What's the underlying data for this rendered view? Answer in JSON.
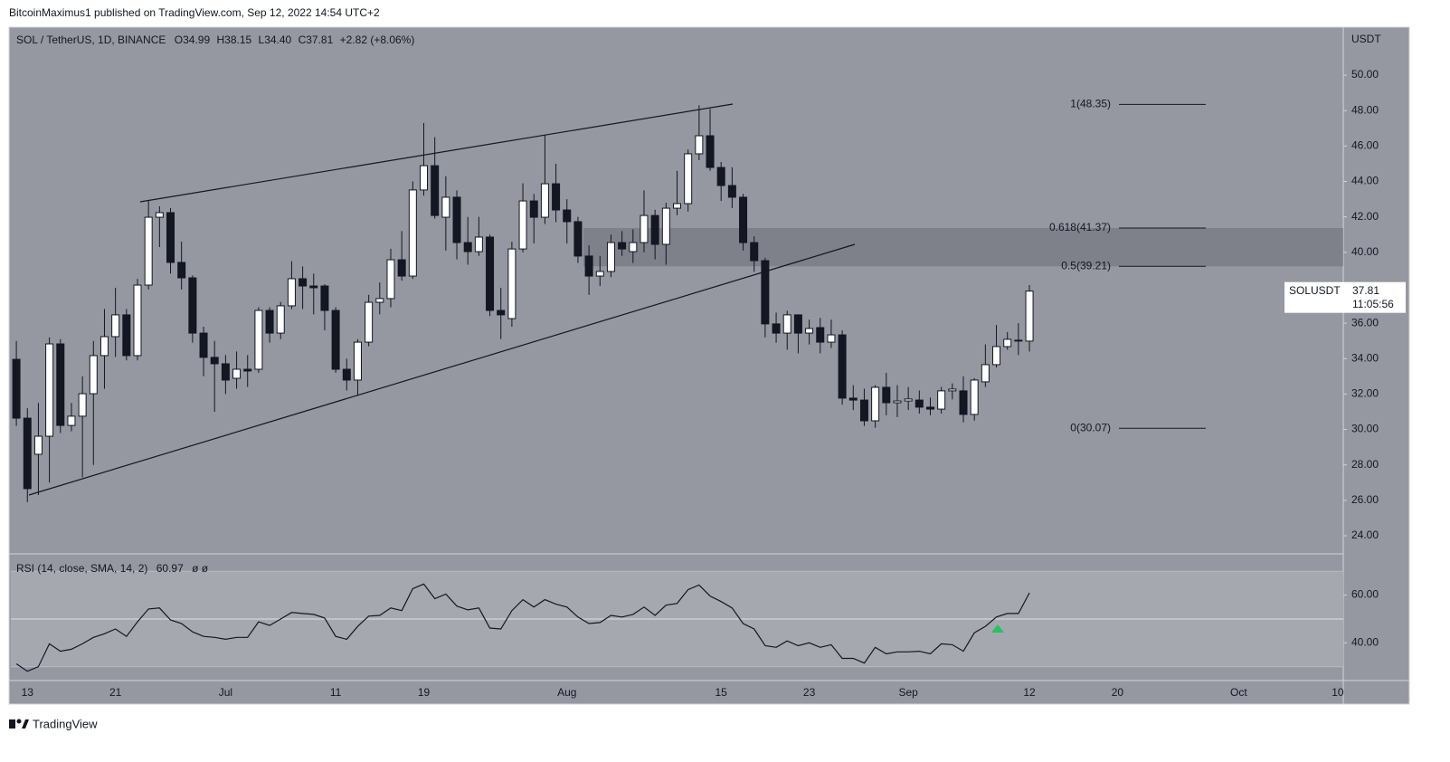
{
  "header": {
    "text": "BitcoinMaximus1 published on TradingView.com, Sep 12, 2022 14:54 UTC+2"
  },
  "footer": {
    "brand": "TradingView"
  },
  "chart_data": [
    {
      "type": "candlestick",
      "title": "SOL / TetherUS, 1D, BINANCE",
      "ohlc_letters": {
        "open": "O",
        "high": "H",
        "low": "L",
        "close": "C"
      },
      "ohlc_labels": {
        "open": "34.99",
        "high": "38.15",
        "low": "34.40",
        "close": "37.81"
      },
      "change": "+2.82 (+8.06%)",
      "axis_unit": "USDT",
      "price_label": {
        "symbol": "SOLUSDT",
        "countdown": "11:05:56"
      },
      "up_color": "#ffffff",
      "down_color": "#131722",
      "x": [
        "2022-06-12",
        "2022-06-13",
        "2022-06-14",
        "2022-06-15",
        "2022-06-16",
        "2022-06-17",
        "2022-06-18",
        "2022-06-19",
        "2022-06-20",
        "2022-06-21",
        "2022-06-22",
        "2022-06-23",
        "2022-06-24",
        "2022-06-25",
        "2022-06-26",
        "2022-06-27",
        "2022-06-28",
        "2022-06-29",
        "2022-06-30",
        "2022-07-01",
        "2022-07-02",
        "2022-07-03",
        "2022-07-04",
        "2022-07-05",
        "2022-07-06",
        "2022-07-07",
        "2022-07-08",
        "2022-07-09",
        "2022-07-10",
        "2022-07-11",
        "2022-07-12",
        "2022-07-13",
        "2022-07-14",
        "2022-07-15",
        "2022-07-16",
        "2022-07-17",
        "2022-07-18",
        "2022-07-19",
        "2022-07-20",
        "2022-07-21",
        "2022-07-22",
        "2022-07-23",
        "2022-07-24",
        "2022-07-25",
        "2022-07-26",
        "2022-07-27",
        "2022-07-28",
        "2022-07-29",
        "2022-07-30",
        "2022-07-31",
        "2022-08-01",
        "2022-08-02",
        "2022-08-03",
        "2022-08-04",
        "2022-08-05",
        "2022-08-06",
        "2022-08-07",
        "2022-08-08",
        "2022-08-09",
        "2022-08-10",
        "2022-08-11",
        "2022-08-12",
        "2022-08-13",
        "2022-08-14",
        "2022-08-15",
        "2022-08-16",
        "2022-08-17",
        "2022-08-18",
        "2022-08-19",
        "2022-08-20",
        "2022-08-21",
        "2022-08-22",
        "2022-08-23",
        "2022-08-24",
        "2022-08-25",
        "2022-08-26",
        "2022-08-27",
        "2022-08-28",
        "2022-08-29",
        "2022-08-30",
        "2022-08-31",
        "2022-09-01",
        "2022-09-02",
        "2022-09-03",
        "2022-09-04",
        "2022-09-05",
        "2022-09-06",
        "2022-09-07",
        "2022-09-08",
        "2022-09-09",
        "2022-09-10",
        "2022-09-11",
        "2022-09-12"
      ],
      "open": [
        33.96,
        30.64,
        28.6,
        29.62,
        34.83,
        30.23,
        30.75,
        32.02,
        34.17,
        35.24,
        36.47,
        34.17,
        38.15,
        41.98,
        42.24,
        39.43,
        38.56,
        35.44,
        34.07,
        33.71,
        32.89,
        33.4,
        33.4,
        36.72,
        35.44,
        36.98,
        38.51,
        38.1,
        38.1,
        36.72,
        33.4,
        32.79,
        34.93,
        37.18,
        37.39,
        39.58,
        38.66,
        43.52,
        44.89,
        41.98,
        43.11,
        40.55,
        40.04,
        40.86,
        36.72,
        36.26,
        40.19,
        42.9,
        41.98,
        43.87,
        42.39,
        41.73,
        39.79,
        38.66,
        38.92,
        40.55,
        40.04,
        40.55,
        42.08,
        40.45,
        42.49,
        42.75,
        45.56,
        46.58,
        44.79,
        43.77,
        43.11,
        40.55,
        39.53,
        35.96,
        35.44,
        36.47,
        35.44,
        35.75,
        34.93,
        35.34,
        31.77,
        31.66,
        30.49,
        32.38,
        31.51,
        31.61,
        31.66,
        31.26,
        31.15,
        32.18,
        32.18,
        30.85,
        32.69,
        33.66,
        34.68,
        35.04,
        34.99
      ],
      "high": [
        35.0,
        31.2,
        31.5,
        35.2,
        35.1,
        31.5,
        33.0,
        35.0,
        36.8,
        38.0,
        36.8,
        38.5,
        42.9,
        42.6,
        42.5,
        40.6,
        38.7,
        35.8,
        35.0,
        34.2,
        34.4,
        34.2,
        36.9,
        36.9,
        37.2,
        39.5,
        39.2,
        38.8,
        38.2,
        36.9,
        34.0,
        35.1,
        37.6,
        38.3,
        40.2,
        41.2,
        44.0,
        47.3,
        46.5,
        44.3,
        43.5,
        42.0,
        42.0,
        41.0,
        38.0,
        40.6,
        43.9,
        43.3,
        46.6,
        45.0,
        43.0,
        42.0,
        40.4,
        39.8,
        41.0,
        41.2,
        41.3,
        43.5,
        42.4,
        42.8,
        44.6,
        45.8,
        48.3,
        48.1,
        45.1,
        44.8,
        43.3,
        40.9,
        39.7,
        36.6,
        36.7,
        36.5,
        36.2,
        36.3,
        36.2,
        35.6,
        32.5,
        32.3,
        32.5,
        33.2,
        32.5,
        32.4,
        32.2,
        31.8,
        32.4,
        32.6,
        33.0,
        32.9,
        34.8,
        35.9,
        35.5,
        36.0,
        38.15
      ],
      "low": [
        30.2,
        25.9,
        26.3,
        27.0,
        29.8,
        29.9,
        27.3,
        28.0,
        32.3,
        34.1,
        33.9,
        33.9,
        37.9,
        40.3,
        38.8,
        37.9,
        34.9,
        33.0,
        31.0,
        32.0,
        32.3,
        32.4,
        33.2,
        34.9,
        35.1,
        36.8,
        36.8,
        36.5,
        35.6,
        33.2,
        32.2,
        31.9,
        34.7,
        36.5,
        36.9,
        38.4,
        38.5,
        43.2,
        41.9,
        40.1,
        39.6,
        39.3,
        39.8,
        36.4,
        35.1,
        35.8,
        40.0,
        40.5,
        41.6,
        41.7,
        40.5,
        39.4,
        37.6,
        38.1,
        38.6,
        39.8,
        39.4,
        40.0,
        39.6,
        39.3,
        42.1,
        42.3,
        45.2,
        44.6,
        42.9,
        42.5,
        40.1,
        38.9,
        35.2,
        34.9,
        34.5,
        34.3,
        34.8,
        34.3,
        34.6,
        31.4,
        31.1,
        30.2,
        30.1,
        30.8,
        30.7,
        31.1,
        30.9,
        30.8,
        30.9,
        31.7,
        30.4,
        30.5,
        32.4,
        33.5,
        34.5,
        34.2,
        34.4
      ],
      "close": [
        30.64,
        26.66,
        29.62,
        34.83,
        30.23,
        30.75,
        32.02,
        34.17,
        35.24,
        36.47,
        34.17,
        38.15,
        41.98,
        42.24,
        39.43,
        38.56,
        35.44,
        34.07,
        33.71,
        32.79,
        33.4,
        33.3,
        36.72,
        35.44,
        36.98,
        38.51,
        38.1,
        38.0,
        36.72,
        33.4,
        32.79,
        34.93,
        37.18,
        37.39,
        39.58,
        38.66,
        43.52,
        44.89,
        42.08,
        43.11,
        40.55,
        40.04,
        40.86,
        36.72,
        36.47,
        40.19,
        42.9,
        41.98,
        43.87,
        42.39,
        41.73,
        39.79,
        38.66,
        38.92,
        40.55,
        40.19,
        40.55,
        42.08,
        40.45,
        42.49,
        42.75,
        45.56,
        46.58,
        44.79,
        43.77,
        43.11,
        40.55,
        39.53,
        35.96,
        35.44,
        36.47,
        35.44,
        35.7,
        34.93,
        35.34,
        31.77,
        31.66,
        30.49,
        32.38,
        31.51,
        31.61,
        31.72,
        31.26,
        31.15,
        32.18,
        32.28,
        30.85,
        32.79,
        33.66,
        34.68,
        35.09,
        34.99,
        37.81
      ],
      "xlim": [
        "2022-06-11T12:00:00",
        "2022-10-10T12:00:00"
      ],
      "xticks": [
        {
          "value": "2022-06-13",
          "label": "13"
        },
        {
          "value": "2022-06-21",
          "label": "21"
        },
        {
          "value": "2022-07-01",
          "label": "Jul"
        },
        {
          "value": "2022-07-11",
          "label": "11"
        },
        {
          "value": "2022-07-19",
          "label": "19"
        },
        {
          "value": "2022-08-01",
          "label": "Aug"
        },
        {
          "value": "2022-08-15",
          "label": "15"
        },
        {
          "value": "2022-08-23",
          "label": "23"
        },
        {
          "value": "2022-09-01",
          "label": "Sep"
        },
        {
          "value": "2022-09-12",
          "label": "12"
        },
        {
          "value": "2022-09-20",
          "label": "20"
        },
        {
          "value": "2022-10-01",
          "label": "Oct"
        },
        {
          "value": "2022-10-10",
          "label": "10"
        }
      ],
      "ylim": [
        22.98,
        52.71
      ],
      "yticks": [
        {
          "value": 24,
          "label": "24.00"
        },
        {
          "value": 26,
          "label": "26.00"
        },
        {
          "value": 28,
          "label": "28.00"
        },
        {
          "value": 30,
          "label": "30.00"
        },
        {
          "value": 32,
          "label": "32.00"
        },
        {
          "value": 34,
          "label": "34.00"
        },
        {
          "value": 36,
          "label": "36.00"
        },
        {
          "value": 38,
          "label": "38.00"
        },
        {
          "value": 40,
          "label": "40.00"
        },
        {
          "value": 42,
          "label": "42.00"
        },
        {
          "value": 44,
          "label": "44.00"
        },
        {
          "value": 46,
          "label": "46.00"
        },
        {
          "value": 48,
          "label": "48.00"
        },
        {
          "value": 50,
          "label": "50.00"
        }
      ],
      "fib_levels": [
        {
          "price": 48.35,
          "label": "1(48.35)"
        },
        {
          "price": 41.37,
          "label": "0.618(41.37)"
        },
        {
          "price": 39.21,
          "label": "0.5(39.21)"
        },
        {
          "price": 30.07,
          "label": "0(30.07)"
        }
      ]
    },
    {
      "type": "line",
      "title": "RSI (14, close, SMA, 14, 2)",
      "extra": "ø ø",
      "color": "#131722",
      "x": [
        "2022-06-12",
        "2022-06-13",
        "2022-06-14",
        "2022-06-15",
        "2022-06-16",
        "2022-06-17",
        "2022-06-18",
        "2022-06-19",
        "2022-06-20",
        "2022-06-21",
        "2022-06-22",
        "2022-06-23",
        "2022-06-24",
        "2022-06-25",
        "2022-06-26",
        "2022-06-27",
        "2022-06-28",
        "2022-06-29",
        "2022-06-30",
        "2022-07-01",
        "2022-07-02",
        "2022-07-03",
        "2022-07-04",
        "2022-07-05",
        "2022-07-06",
        "2022-07-07",
        "2022-07-08",
        "2022-07-09",
        "2022-07-10",
        "2022-07-11",
        "2022-07-12",
        "2022-07-13",
        "2022-07-14",
        "2022-07-15",
        "2022-07-16",
        "2022-07-17",
        "2022-07-18",
        "2022-07-19",
        "2022-07-20",
        "2022-07-21",
        "2022-07-22",
        "2022-07-23",
        "2022-07-24",
        "2022-07-25",
        "2022-07-26",
        "2022-07-27",
        "2022-07-28",
        "2022-07-29",
        "2022-07-30",
        "2022-07-31",
        "2022-08-01",
        "2022-08-02",
        "2022-08-03",
        "2022-08-04",
        "2022-08-05",
        "2022-08-06",
        "2022-08-07",
        "2022-08-08",
        "2022-08-09",
        "2022-08-10",
        "2022-08-11",
        "2022-08-12",
        "2022-08-13",
        "2022-08-14",
        "2022-08-15",
        "2022-08-16",
        "2022-08-17",
        "2022-08-18",
        "2022-08-19",
        "2022-08-20",
        "2022-08-21",
        "2022-08-22",
        "2022-08-23",
        "2022-08-24",
        "2022-08-25",
        "2022-08-26",
        "2022-08-27",
        "2022-08-28",
        "2022-08-29",
        "2022-08-30",
        "2022-08-31",
        "2022-09-01",
        "2022-09-02",
        "2022-09-03",
        "2022-09-04",
        "2022-09-05",
        "2022-09-06",
        "2022-09-07",
        "2022-09-08",
        "2022-09-09",
        "2022-09-10",
        "2022-09-11",
        "2022-09-12"
      ],
      "values": [
        31.2,
        28.1,
        30.0,
        39.6,
        36.5,
        37.3,
        39.6,
        42.3,
        43.8,
        45.8,
        42.7,
        48.8,
        54.2,
        54.6,
        49.6,
        48.1,
        44.6,
        42.7,
        42.3,
        41.5,
        42.3,
        42.3,
        48.8,
        47.3,
        50.0,
        52.7,
        52.3,
        51.9,
        50.4,
        42.7,
        41.5,
        46.9,
        51.2,
        51.5,
        54.6,
        53.5,
        62.7,
        64.6,
        58.5,
        60.4,
        55.4,
        53.8,
        54.6,
        46.2,
        45.8,
        53.5,
        58.1,
        55.0,
        58.1,
        56.2,
        55.0,
        50.8,
        48.1,
        48.5,
        51.5,
        50.8,
        51.9,
        55.0,
        51.5,
        55.8,
        56.5,
        62.3,
        64.2,
        59.6,
        57.3,
        54.6,
        48.1,
        45.8,
        38.8,
        38.1,
        40.8,
        38.8,
        40.0,
        38.1,
        39.2,
        33.5,
        33.5,
        31.5,
        38.1,
        35.4,
        36.2,
        36.2,
        36.5,
        35.4,
        39.6,
        39.2,
        36.5,
        44.2,
        46.9,
        50.8,
        52.3,
        52.3,
        60.97
      ],
      "xlim": [
        "2022-06-11T12:00:00",
        "2022-10-10T12:00:00"
      ],
      "ylim": [
        24.2,
        76.9
      ],
      "yticks": [
        {
          "value": 40,
          "label": "40.00"
        },
        {
          "value": 60,
          "label": "60.00"
        }
      ],
      "bands": [
        30,
        70
      ],
      "midline": 50
    }
  ]
}
